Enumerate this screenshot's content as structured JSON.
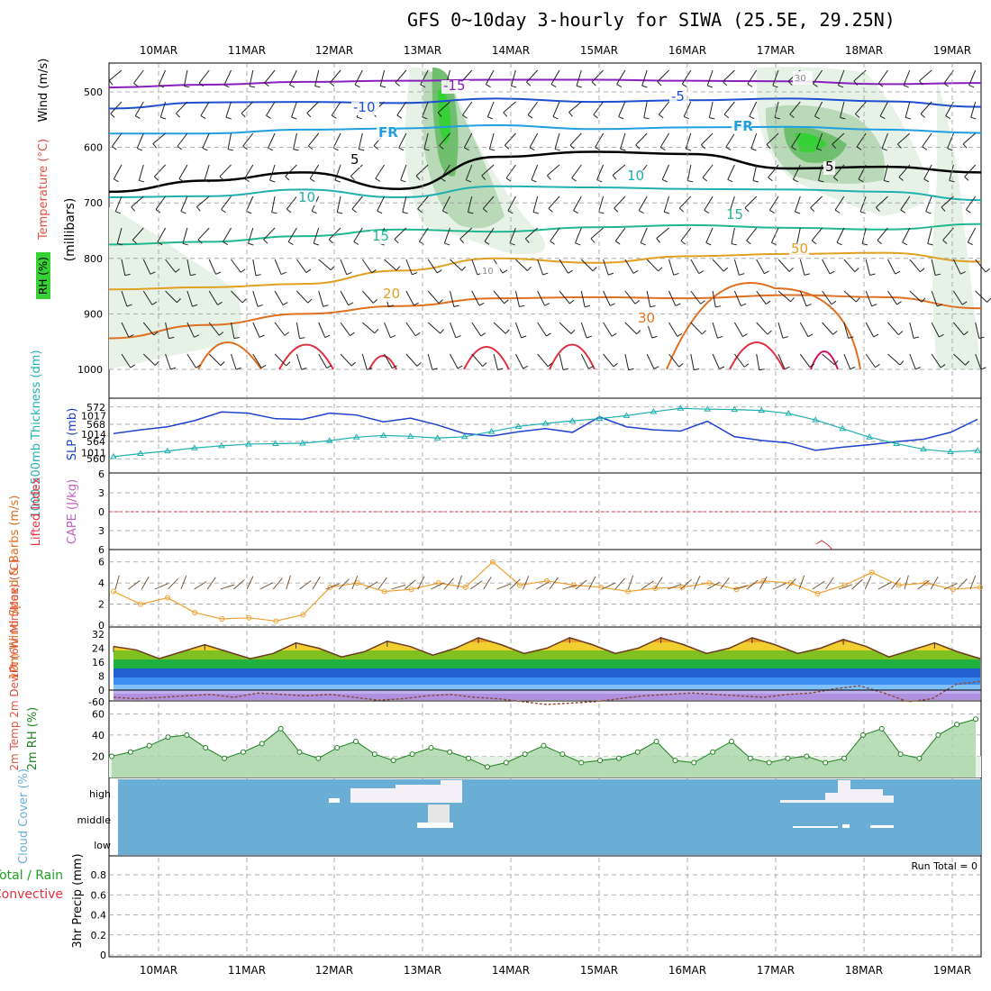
{
  "title": "GFS 0~10day 3-hourly for SIWA (25.5E, 29.25N)",
  "colors": {
    "temp500": "#8a1fbf",
    "temp_m10": "#1f4fd0",
    "temp_m5": "#1f9fe0",
    "freezing": "#000000",
    "temp_5": "#20b0b0",
    "temp_10": "#20b890",
    "temp_15": "#e0a020",
    "temp_20": "#e07020",
    "temp_25": "#e03040",
    "rh_light": "#e6f2e6",
    "rh_mid": "#b9d9b9",
    "rh_dark": "#6fbf6f",
    "rh_max": "#37d037",
    "slp": "#2040d0",
    "thickness": "#20b0b0",
    "wind10": "#f0a030",
    "cloud_bg": "#6aaed6"
  },
  "chart_data": [
    {
      "type": "contour",
      "panel": "upper_air",
      "xlabel": "",
      "ylabel": "(millibars)",
      "legend_labels": [
        "RH (%)",
        "Temperature (°C)",
        "Wind (m/s)"
      ],
      "x_dates": [
        "10MAR",
        "11MAR",
        "12MAR",
        "13MAR",
        "14MAR",
        "15MAR",
        "16MAR",
        "17MAR",
        "18MAR",
        "19MAR"
      ],
      "y_ticks": [
        500,
        600,
        700,
        800,
        900,
        1000
      ],
      "ylim": [
        1000,
        450
      ],
      "contour_labels": [
        "-15",
        "-10",
        "-5",
        "FR",
        "FR",
        "5",
        "5",
        "10",
        "10",
        "15",
        "15",
        "20",
        "50",
        "30",
        "30",
        "10"
      ],
      "isotherms": [
        {
          "label": "-15",
          "pressure": [
            492,
            487,
            482,
            480,
            478,
            478,
            480,
            481,
            486,
            484
          ]
        },
        {
          "label": "-10",
          "pressure": [
            530,
            519,
            518,
            520,
            512,
            518,
            515,
            512,
            517,
            527
          ]
        },
        {
          "label": "-5",
          "pressure": [
            575,
            575,
            568,
            566,
            560,
            567,
            564,
            563,
            568,
            574
          ]
        },
        {
          "label": "FR",
          "pressure": [
            680,
            660,
            645,
            675,
            617,
            608,
            612,
            638,
            635,
            645
          ]
        },
        {
          "label": "5",
          "pressure": [
            690,
            688,
            676,
            690,
            670,
            672,
            675,
            676,
            680,
            695
          ]
        },
        {
          "label": "10",
          "pressure": [
            775,
            770,
            760,
            748,
            752,
            744,
            740,
            745,
            748,
            738
          ]
        },
        {
          "label": "15",
          "pressure": [
            856,
            852,
            846,
            822,
            800,
            808,
            796,
            792,
            790,
            806
          ]
        },
        {
          "label": "20",
          "pressure": [
            944,
            920,
            900,
            886,
            872,
            870,
            872,
            866,
            870,
            890
          ]
        }
      ]
    },
    {
      "type": "line",
      "panel": "slp_thickness",
      "ylabel_left": "1000-500mb Thickness (dm)",
      "ylabel_right": "SLP (mb)",
      "thickness_ticks": [
        560,
        564,
        568,
        572
      ],
      "slp_ticks": [
        1011,
        1014,
        1017
      ],
      "series": [
        {
          "name": "SLP (mb)",
          "values": [
            1014.1,
            1014.7,
            1015.2,
            1016.2,
            1017.6,
            1017.4,
            1016.5,
            1016.4,
            1017.4,
            1017.1,
            1016.0,
            1016.6,
            1015.5,
            1014.1,
            1013.7,
            1014.4,
            1014.9,
            1014.3,
            1016.8,
            1015.2,
            1014.7,
            1014.5,
            1016.1,
            1013.6,
            1013.0,
            1012.6,
            1011.4,
            1011.9,
            1012.3,
            1012.8,
            1013.2,
            1014.3,
            1016.4
          ]
        },
        {
          "name": "1000-500mb Thickness (dm)",
          "values": [
            560.5,
            561.2,
            561.8,
            562.5,
            563.0,
            563.4,
            563.5,
            563.6,
            564.2,
            565.0,
            565.4,
            565.2,
            564.8,
            565.1,
            566.3,
            567.5,
            568.2,
            568.8,
            569.3,
            570.0,
            570.9,
            571.7,
            571.5,
            571.4,
            571.2,
            570.5,
            569.0,
            567.0,
            565.0,
            563.5,
            562.2,
            561.6,
            561.9
          ]
        }
      ]
    },
    {
      "type": "line",
      "panel": "stability",
      "ylabel_left": "Lifted Index",
      "ylabel_right": "CAPE (J/kg)",
      "y_ticks": [
        "6",
        "3",
        "0",
        "3",
        "6"
      ],
      "series": []
    },
    {
      "type": "line",
      "panel": "wind10m",
      "ylabel": "10m Wind Speed & Barbs (m/s)",
      "y_ticks": [
        0,
        2,
        4,
        6
      ],
      "ylim": [
        0,
        7
      ],
      "series": [
        {
          "name": "10m Wind Speed",
          "values": [
            3.2,
            2.0,
            2.6,
            1.2,
            0.6,
            0.7,
            0.4,
            1.0,
            3.6,
            4.0,
            3.2,
            3.4,
            4.0,
            3.6,
            6.0,
            3.8,
            4.2,
            3.8,
            3.6,
            3.2,
            3.5,
            3.6,
            4.0,
            3.4,
            4.2,
            4.0,
            3.0,
            3.8,
            5.0,
            3.8,
            4.0,
            3.4,
            3.6
          ]
        }
      ]
    },
    {
      "type": "area",
      "panel": "temp2m",
      "ylabel": "2m Temp 2m DewPt (6hr Min/Max) (°C)",
      "y_ticks": [
        -60,
        0,
        8,
        16,
        24,
        32
      ],
      "series": [
        {
          "name": "2m Temp",
          "values": [
            25,
            23,
            18,
            22,
            26,
            22,
            18,
            21,
            27,
            24,
            19,
            22,
            28,
            25,
            20,
            24,
            30,
            26,
            21,
            24,
            30,
            26,
            21,
            24,
            30,
            26,
            21,
            24,
            30,
            26,
            21,
            24,
            29,
            25,
            19,
            23,
            27,
            22,
            18
          ]
        },
        {
          "name": "2m DewPt",
          "values": [
            -5,
            -6,
            -5,
            -4,
            -3,
            -5,
            -2,
            -3,
            -4,
            -3,
            -5,
            -7,
            -6,
            -4,
            -3,
            -5,
            -6,
            -8,
            -10,
            -9,
            -8,
            -6,
            -4,
            -3,
            -2,
            -3,
            -4,
            -5,
            -3,
            -2,
            1,
            3,
            -2,
            -8,
            -6,
            4,
            6
          ]
        }
      ]
    },
    {
      "type": "area",
      "panel": "rh2m",
      "ylabel": "2m RH (%)",
      "y_ticks": [
        20,
        40,
        60
      ],
      "series": [
        {
          "name": "2m RH",
          "values": [
            20,
            24,
            30,
            38,
            40,
            28,
            18,
            24,
            32,
            46,
            24,
            18,
            28,
            34,
            22,
            16,
            22,
            28,
            24,
            18,
            10,
            14,
            22,
            30,
            22,
            14,
            16,
            18,
            24,
            34,
            16,
            14,
            24,
            34,
            18,
            14,
            18,
            20,
            14,
            18,
            40,
            46,
            22,
            18,
            40,
            50,
            55
          ]
        }
      ]
    },
    {
      "type": "heatmap",
      "panel": "cloud_cover",
      "ylabel": "Cloud Cover (%)",
      "y_categories": [
        "high",
        "middle",
        "low"
      ]
    },
    {
      "type": "bar",
      "panel": "precip",
      "ylabel": "3hr Precip (mm)",
      "legend": [
        "Total / Rain",
        "Convective"
      ],
      "y_ticks": [
        0,
        0.2,
        0.4,
        0.6,
        0.8
      ],
      "ylim": [
        0,
        0.9
      ],
      "run_total_label": "Run Total = 0",
      "values": []
    }
  ]
}
